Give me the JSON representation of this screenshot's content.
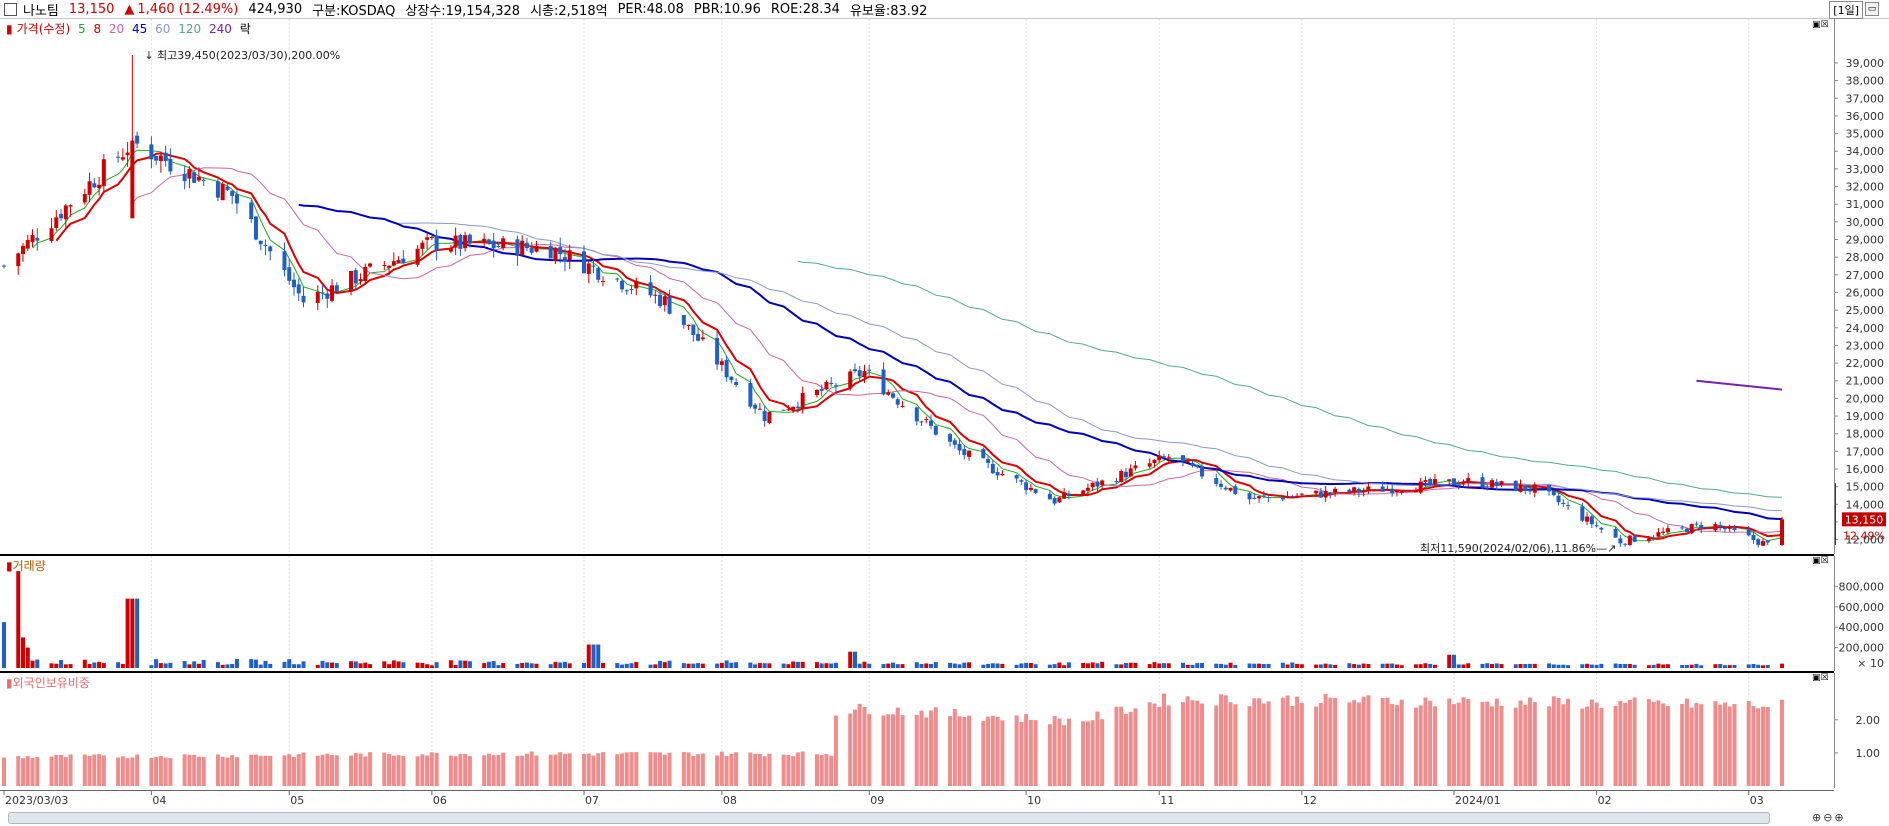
{
  "header": {
    "name": "나노팀",
    "price": "13,150",
    "arrow": "▲",
    "change": "1,460",
    "change_pct": "(12.49%)",
    "volume": "424,930",
    "market": "구분:KOSDAQ",
    "shares": "상장수:19,154,328",
    "mcap": "시총:2,518억",
    "per": "PER:48.08",
    "pbr": "PBR:10.96",
    "roe": "ROE:28.34",
    "float": "유보율:83.92",
    "period": "[1일]"
  },
  "legend": {
    "price_label": "가격(수정)",
    "ma": [
      {
        "label": "5",
        "color": "#22aa22"
      },
      {
        "label": "8",
        "color": "#dd0000"
      },
      {
        "label": "20",
        "color": "#cc66aa"
      },
      {
        "label": "45",
        "color": "#0000bb"
      },
      {
        "label": "60",
        "color": "#8899cc"
      },
      {
        "label": "120",
        "color": "#55aa88"
      },
      {
        "label": "240",
        "color": "#7722aa"
      }
    ],
    "extra": "락"
  },
  "annotations": {
    "high": "최고39,450(2023/03/30),200.00%",
    "low": "최저11,590(2024/02/06),11.86%"
  },
  "price_tag": {
    "value": "13,150",
    "pct": "12.49%"
  },
  "panels": {
    "volume_label": "거래량",
    "volume_unit": "× 10",
    "foreign_label": "외국인보유비중"
  },
  "colors": {
    "up": "#d00000",
    "down": "#1f5fc8",
    "foreign_bar": "#f08c8c"
  },
  "chart_data": [
    {
      "type": "candlestick",
      "title": "",
      "y_ticks": [
        "12,000",
        "13,000",
        "14,000",
        "15,000",
        "16,000",
        "17,000",
        "18,000",
        "19,000",
        "20,000",
        "21,000",
        "22,000",
        "23,000",
        "24,000",
        "25,000",
        "26,000",
        "27,000",
        "28,000",
        "29,000",
        "30,000",
        "31,000",
        "32,000",
        "33,000",
        "34,000",
        "35,000",
        "36,000",
        "37,000",
        "38,000",
        "39,000"
      ],
      "ylim": [
        11300,
        40300
      ],
      "x_ticks": [
        "2023/03/03",
        "04",
        "05",
        "06",
        "07",
        "08",
        "09",
        "10",
        "11",
        "12",
        "2024/01",
        "02",
        "03"
      ],
      "high": {
        "value": 39450,
        "date": "2023/03/30"
      },
      "low": {
        "value": 11590,
        "date": "2024/02/06"
      },
      "last_close": 13150,
      "key_points": [
        {
          "date": "2023/03/03",
          "close": 27500
        },
        {
          "date": "2023/03/30",
          "close": 34500
        },
        {
          "date": "2023/04/20",
          "close": 31500
        },
        {
          "date": "2023/05/05",
          "close": 25500
        },
        {
          "date": "2023/06/01",
          "close": 28800
        },
        {
          "date": "2023/06/26",
          "close": 28500
        },
        {
          "date": "2023/07/20",
          "close": 25500
        },
        {
          "date": "2023/08/10",
          "close": 19000
        },
        {
          "date": "2023/08/31",
          "close": 21500
        },
        {
          "date": "2023/09/20",
          "close": 17000
        },
        {
          "date": "2023/10/10",
          "close": 14200
        },
        {
          "date": "2023/11/03",
          "close": 16700
        },
        {
          "date": "2023/11/20",
          "close": 14300
        },
        {
          "date": "2023/12/15",
          "close": 14800
        },
        {
          "date": "2024/01/05",
          "close": 15300
        },
        {
          "date": "2024/01/20",
          "close": 14800
        },
        {
          "date": "2024/02/06",
          "close": 11900
        },
        {
          "date": "2024/02/25",
          "close": 12900
        },
        {
          "date": "2024/03/08",
          "close": 11700
        },
        {
          "date": "2024/03/11",
          "close": 13150
        }
      ]
    },
    {
      "type": "bar",
      "title": "거래량",
      "y_ticks": [
        "200,000",
        "400,000",
        "600,000",
        "800,000"
      ],
      "ylim": [
        0,
        1000000
      ],
      "key_points": [
        {
          "date": "2023/03/03",
          "value": 950000
        },
        {
          "date": "2023/03/30",
          "value": 680000
        },
        {
          "date": "2023/07/05",
          "value": 230000
        },
        {
          "date": "2023/08/28",
          "value": 160000
        },
        {
          "date": "2024/01/01",
          "value": 130000
        }
      ]
    },
    {
      "type": "bar",
      "title": "외국인보유비중",
      "y_ticks": [
        "1.00",
        "2.00"
      ],
      "ylim": [
        0,
        2.9
      ],
      "key_points": [
        {
          "date": "2023/03/03",
          "value": 0.9
        },
        {
          "date": "2023/06/10",
          "value": 1.0
        },
        {
          "date": "2023/08/31",
          "value": 2.4
        },
        {
          "date": "2023/10/15",
          "value": 2.0
        },
        {
          "date": "2023/11/03",
          "value": 2.7
        },
        {
          "date": "2024/01/15",
          "value": 2.6
        },
        {
          "date": "2024/03/08",
          "value": 2.5
        }
      ]
    }
  ]
}
